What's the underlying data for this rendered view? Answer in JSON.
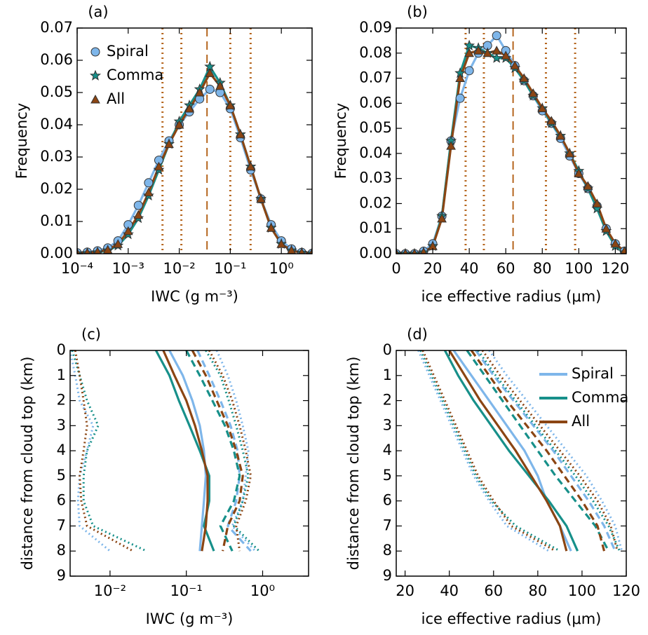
{
  "chart_data": [
    {
      "type": "line",
      "panel_label": "(a)",
      "xlabel": "IWC (g m⁻³)",
      "ylabel": "Frequency",
      "xscale": "log",
      "xlim": [
        0.0001,
        4
      ],
      "xticks": [
        {
          "value": 0.0001,
          "label": "10⁻⁴"
        },
        {
          "value": 0.001,
          "label": "10⁻³"
        },
        {
          "value": 0.01,
          "label": "10⁻²"
        },
        {
          "value": 0.1,
          "label": "10⁻¹"
        },
        {
          "value": 1,
          "label": "10⁰"
        }
      ],
      "ylim": [
        0,
        0.07
      ],
      "yticks": [
        {
          "value": 0,
          "label": "0.00"
        },
        0.01,
        0.02,
        0.03,
        0.04,
        0.05,
        0.06,
        0.07
      ],
      "x": [
        0.0001,
        0.000158,
        0.000251,
        0.000398,
        0.000631,
        0.001,
        0.00158,
        0.00251,
        0.00398,
        0.00631,
        0.01,
        0.0158,
        0.0251,
        0.0398,
        0.0631,
        0.1,
        0.158,
        0.251,
        0.398,
        0.631,
        1,
        1.58,
        2.51,
        3.98
      ],
      "series": [
        {
          "name": "Spiral",
          "color": "#7eb6ea",
          "marker": "circle",
          "values": [
            0.0003,
            0.0005,
            0.0009,
            0.0018,
            0.004,
            0.009,
            0.015,
            0.022,
            0.029,
            0.035,
            0.04,
            0.044,
            0.048,
            0.051,
            0.05,
            0.045,
            0.036,
            0.026,
            0.017,
            0.009,
            0.004,
            0.0015,
            0.0004,
            0.0001
          ]
        },
        {
          "name": "Comma",
          "color": "#17908a",
          "marker": "star",
          "values": [
            0.0001,
            0.0002,
            0.0004,
            0.001,
            0.0025,
            0.006,
            0.011,
            0.018,
            0.026,
            0.034,
            0.041,
            0.046,
            0.051,
            0.058,
            0.053,
            0.046,
            0.037,
            0.027,
            0.017,
            0.008,
            0.003,
            0.001,
            0.0003,
            0.0001
          ]
        },
        {
          "name": "All",
          "color": "#8b4513",
          "marker": "triangle",
          "values": [
            0.0002,
            0.0003,
            0.0006,
            0.0012,
            0.003,
            0.007,
            0.012,
            0.019,
            0.027,
            0.034,
            0.04,
            0.045,
            0.05,
            0.056,
            0.052,
            0.046,
            0.037,
            0.027,
            0.017,
            0.008,
            0.003,
            0.001,
            0.0003,
            0.0001
          ]
        }
      ],
      "legend": "upper left",
      "vline_color": "#b5651d",
      "vlines": [
        {
          "value": 0.0047,
          "style": "dotted"
        },
        {
          "value": 0.011,
          "style": "dotted"
        },
        {
          "value": 0.035,
          "style": "dashed"
        },
        {
          "value": 0.1,
          "style": "dotted"
        },
        {
          "value": 0.25,
          "style": "dotted"
        }
      ]
    },
    {
      "type": "line",
      "panel_label": "(b)",
      "xlabel": "ice effective radius (μm)",
      "ylabel": "Frequency",
      "xscale": "linear",
      "xlim": [
        0,
        126
      ],
      "xticks": [
        0,
        20,
        40,
        60,
        80,
        100,
        120
      ],
      "ylim": [
        0,
        0.09
      ],
      "yticks": [
        {
          "value": 0,
          "label": "0.00"
        },
        0.01,
        0.02,
        0.03,
        0.04,
        0.05,
        0.06,
        0.07,
        0.08,
        0.09
      ],
      "x": [
        0,
        5,
        10,
        15,
        20,
        25,
        30,
        35,
        40,
        45,
        50,
        55,
        60,
        65,
        70,
        75,
        80,
        85,
        90,
        95,
        100,
        105,
        110,
        115,
        120,
        125
      ],
      "series": [
        {
          "name": "Spiral",
          "color": "#7eb6ea",
          "marker": "circle",
          "values": [
            0,
            0,
            0,
            0.001,
            0.004,
            0.015,
            0.045,
            0.062,
            0.073,
            0.08,
            0.083,
            0.087,
            0.081,
            0.075,
            0.069,
            0.063,
            0.057,
            0.052,
            0.046,
            0.039,
            0.032,
            0.026,
            0.019,
            0.01,
            0.004,
            0.001
          ]
        },
        {
          "name": "Comma",
          "color": "#17908a",
          "marker": "star",
          "values": [
            0,
            0,
            0,
            0.0005,
            0.003,
            0.015,
            0.045,
            0.072,
            0.083,
            0.082,
            0.08,
            0.078,
            0.078,
            0.074,
            0.069,
            0.063,
            0.058,
            0.052,
            0.047,
            0.04,
            0.033,
            0.026,
            0.018,
            0.009,
            0.003,
            0.0005
          ]
        },
        {
          "name": "All",
          "color": "#8b4513",
          "marker": "triangle",
          "values": [
            0,
            0,
            0,
            0.0005,
            0.003,
            0.014,
            0.043,
            0.07,
            0.08,
            0.081,
            0.08,
            0.081,
            0.079,
            0.075,
            0.07,
            0.064,
            0.058,
            0.053,
            0.047,
            0.04,
            0.032,
            0.027,
            0.02,
            0.01,
            0.004,
            0.001
          ]
        }
      ],
      "vline_color": "#b5651d",
      "vlines": [
        {
          "value": 38,
          "style": "dotted"
        },
        {
          "value": 48,
          "style": "dotted"
        },
        {
          "value": 64,
          "style": "dashed"
        },
        {
          "value": 82,
          "style": "dotted"
        },
        {
          "value": 98,
          "style": "dotted"
        }
      ]
    },
    {
      "type": "line",
      "panel_label": "(c)",
      "xlabel": "IWC (g m⁻³)",
      "ylabel": "distance from cloud top (km)",
      "xscale": "log",
      "xlim": [
        0.003,
        4
      ],
      "xticks": [
        {
          "value": 0.01,
          "label": "10⁻²"
        },
        {
          "value": 0.1,
          "label": "10⁻¹"
        },
        {
          "value": 1,
          "label": "10⁰"
        }
      ],
      "ylim": [
        9,
        0
      ],
      "yticks": [
        0,
        1,
        2,
        3,
        4,
        5,
        6,
        7,
        8,
        9
      ],
      "y": [
        0,
        1,
        2,
        3,
        4,
        5,
        6,
        7,
        8
      ],
      "series": [
        {
          "name": "Spiral",
          "color": "#7eb6ea",
          "style": "solid",
          "values": [
            0.06,
            0.09,
            0.12,
            0.15,
            0.17,
            0.18,
            0.17,
            0.16,
            0.15
          ]
        },
        {
          "name": "Comma",
          "color": "#17908a",
          "style": "solid",
          "values": [
            0.04,
            0.06,
            0.08,
            0.11,
            0.15,
            0.2,
            0.2,
            0.17,
            0.23
          ]
        },
        {
          "name": "All",
          "color": "#8b4513",
          "style": "solid",
          "values": [
            0.05,
            0.07,
            0.1,
            0.13,
            0.16,
            0.19,
            0.19,
            0.18,
            0.16
          ]
        },
        {
          "name": "Spiral",
          "color": "#7eb6ea",
          "style": "dashed",
          "values": [
            0.14,
            0.2,
            0.28,
            0.38,
            0.47,
            0.5,
            0.45,
            0.35,
            0.7
          ]
        },
        {
          "name": "Comma",
          "color": "#17908a",
          "style": "dashed",
          "values": [
            0.1,
            0.15,
            0.22,
            0.32,
            0.42,
            0.5,
            0.42,
            0.28,
            0.4
          ]
        },
        {
          "name": "All",
          "color": "#8b4513",
          "style": "dashed",
          "values": [
            0.12,
            0.18,
            0.25,
            0.35,
            0.45,
            0.55,
            0.5,
            0.35,
            0.3
          ]
        },
        {
          "name": "Spiral",
          "color": "#7eb6ea",
          "style": "dotted",
          "values": [
            0.25,
            0.35,
            0.45,
            0.55,
            0.65,
            0.6,
            0.55,
            0.4,
            0.8
          ]
        },
        {
          "name": "Comma",
          "color": "#17908a",
          "style": "dotted",
          "values": [
            0.18,
            0.28,
            0.36,
            0.45,
            0.55,
            0.65,
            0.55,
            0.42,
            0.9
          ]
        },
        {
          "name": "All",
          "color": "#8b4513",
          "style": "dotted",
          "values": [
            0.2,
            0.3,
            0.4,
            0.5,
            0.6,
            0.7,
            0.6,
            0.45,
            0.5
          ]
        },
        {
          "name": "Spiral",
          "color": "#7eb6ea",
          "style": "dotted",
          "values": [
            0.003,
            0.0035,
            0.004,
            0.006,
            0.005,
            0.004,
            0.0038,
            0.004,
            0.01
          ]
        },
        {
          "name": "Comma",
          "color": "#17908a",
          "style": "dotted",
          "values": [
            0.0032,
            0.004,
            0.005,
            0.007,
            0.005,
            0.0045,
            0.0045,
            0.006,
            0.03
          ]
        },
        {
          "name": "All",
          "color": "#8b4513",
          "style": "dotted",
          "values": [
            0.0035,
            0.004,
            0.0045,
            0.005,
            0.0045,
            0.004,
            0.0042,
            0.005,
            0.02
          ]
        }
      ]
    },
    {
      "type": "line",
      "panel_label": "(d)",
      "xlabel": "ice effective radius (μm)",
      "ylabel": "distance from cloud top (km)",
      "xscale": "linear",
      "xlim": [
        16,
        120
      ],
      "xticks": [
        20,
        40,
        60,
        80,
        100,
        120
      ],
      "ylim": [
        9,
        0
      ],
      "yticks": [
        0,
        1,
        2,
        3,
        4,
        5,
        6,
        7,
        8,
        9
      ],
      "y": [
        0,
        1,
        2,
        3,
        4,
        5,
        6,
        7,
        8
      ],
      "series": [
        {
          "name": "Spiral",
          "color": "#7eb6ea",
          "style": "solid",
          "values": [
            42,
            50,
            58,
            66,
            74,
            80,
            84,
            90,
            95
          ]
        },
        {
          "name": "Comma",
          "color": "#17908a",
          "style": "solid",
          "values": [
            38,
            44,
            51,
            59,
            67,
            76,
            85,
            93,
            98
          ]
        },
        {
          "name": "All",
          "color": "#8b4513",
          "style": "solid",
          "values": [
            40,
            47,
            54,
            62,
            70,
            77,
            84,
            90,
            93
          ]
        },
        {
          "name": "Spiral",
          "color": "#7eb6ea",
          "style": "dashed",
          "values": [
            52,
            60,
            69,
            78,
            87,
            95,
            103,
            110,
            115
          ]
        },
        {
          "name": "Comma",
          "color": "#17908a",
          "style": "dashed",
          "values": [
            48,
            56,
            64,
            72,
            80,
            88,
            97,
            106,
            112
          ]
        },
        {
          "name": "All",
          "color": "#8b4513",
          "style": "dashed",
          "values": [
            50,
            58,
            66,
            75,
            84,
            92,
            100,
            107,
            110
          ]
        },
        {
          "name": "Spiral",
          "color": "#7eb6ea",
          "style": "dotted",
          "values": [
            58,
            66,
            75,
            84,
            93,
            102,
            109,
            115,
            118
          ]
        },
        {
          "name": "Comma",
          "color": "#17908a",
          "style": "dotted",
          "values": [
            53,
            61,
            70,
            79,
            88,
            97,
            105,
            112,
            117
          ]
        },
        {
          "name": "All",
          "color": "#8b4513",
          "style": "dotted",
          "values": [
            55,
            63,
            72,
            81,
            90,
            99,
            107,
            113,
            116
          ]
        },
        {
          "name": "Spiral",
          "color": "#7eb6ea",
          "style": "dotted",
          "values": [
            26,
            31,
            36,
            41,
            46,
            51,
            58,
            66,
            85
          ]
        },
        {
          "name": "Comma",
          "color": "#17908a",
          "style": "dotted",
          "values": [
            27,
            32,
            37,
            42,
            47,
            52,
            59,
            70,
            90
          ]
        },
        {
          "name": "All",
          "color": "#8b4513",
          "style": "dotted",
          "values": [
            28,
            33,
            38,
            43,
            48,
            53,
            60,
            68,
            88
          ]
        }
      ],
      "legend": "upper right"
    }
  ]
}
